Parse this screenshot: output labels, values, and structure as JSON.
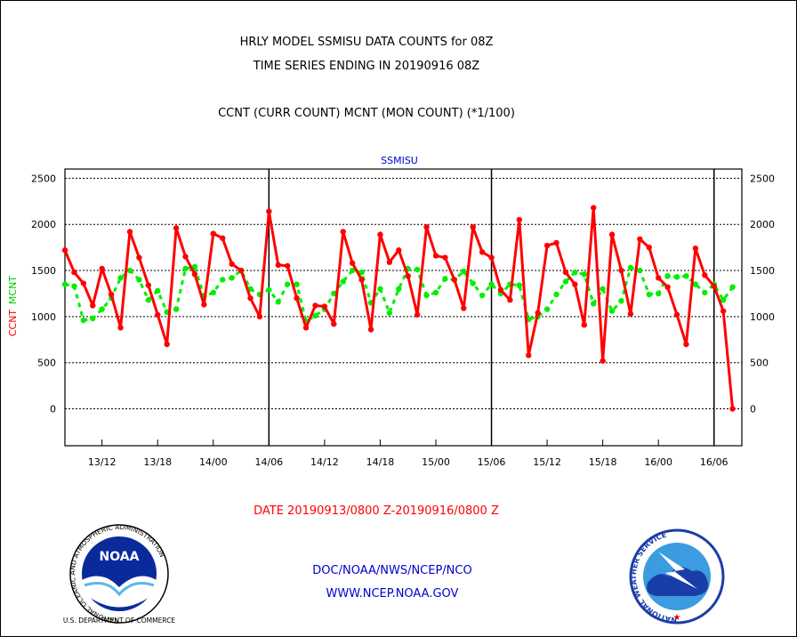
{
  "header": {
    "title_line1": "HRLY MODEL SSMISU DATA COUNTS for 08Z",
    "title_line2": "TIME SERIES ENDING IN 20190916 08Z",
    "legend_line": "CCNT (CURR COUNT) MCNT (MON COUNT) (*1/100)"
  },
  "footer": {
    "date_range": "DATE 20190913/0800 Z-20190916/0800 Z",
    "org_line": "DOC/NOAA/NWS/NCEP/NCO",
    "url_line": "WWW.NCEP.NOAA.GOV",
    "noaa_logo_text": "NOAA",
    "noaa_ring_text": "NATIONAL OCEANIC AND ATMOSPHERIC ADMINISTRATION",
    "noaa_ring_text_bottom": "U.S. DEPARTMENT OF COMMERCE",
    "nws_ring_text": "NATIONAL WEATHER SERVICE"
  },
  "colors": {
    "ccnt": "#ff0000",
    "mcnt": "#00ee00",
    "title_text": "#000000",
    "subtitle_blue": "#0000cc",
    "date_red": "#ff0000",
    "frame": "#000000"
  },
  "chart_data": {
    "type": "line",
    "title": "SSMISU",
    "ylabel_left_ccnt": "CCNT",
    "ylabel_left_mcnt": "MCNT",
    "ylim": [
      -400,
      2600
    ],
    "yticks": [
      0,
      500,
      1000,
      1500,
      2000,
      2500
    ],
    "ytick_labels": [
      "0",
      "500",
      "1000",
      "1500",
      "2000",
      "2500"
    ],
    "xlim": [
      0,
      73
    ],
    "xticks": [
      4,
      10,
      16,
      22,
      28,
      34,
      40,
      46,
      52,
      58,
      64,
      70
    ],
    "xtick_labels": [
      "13/12",
      "13/18",
      "14/00",
      "14/06",
      "14/12",
      "14/18",
      "15/00",
      "15/06",
      "15/12",
      "15/18",
      "16/00",
      "16/06"
    ],
    "day_boundaries": [
      22,
      46,
      70
    ],
    "grid": true,
    "series": [
      {
        "name": "CCNT",
        "values": [
          1720,
          1480,
          1360,
          1120,
          1520,
          1240,
          880,
          1920,
          1640,
          1340,
          1020,
          700,
          1960,
          1650,
          1460,
          1130,
          1900,
          1850,
          1570,
          1500,
          1200,
          1000,
          2140,
          1560,
          1550,
          1200,
          880,
          1120,
          1110,
          920,
          1920,
          1580,
          1400,
          860,
          1890,
          1590,
          1720,
          1440,
          1020,
          1970,
          1660,
          1640,
          1400,
          1090,
          1970,
          1700,
          1640,
          1290,
          1180,
          2050,
          580,
          1040,
          1770,
          1800,
          1480,
          1350,
          910,
          2180,
          520,
          1890,
          1500,
          1030,
          1840,
          1750,
          1420,
          1320,
          1020,
          700,
          1740,
          1450,
          1330,
          1060,
          0
        ]
      },
      {
        "name": "MCNT",
        "values": [
          1350,
          1330,
          960,
          980,
          1080,
          1200,
          1420,
          1500,
          1400,
          1180,
          1280,
          1050,
          1080,
          1520,
          1540,
          1220,
          1260,
          1400,
          1420,
          1500,
          1300,
          1240,
          1290,
          1160,
          1350,
          1350,
          950,
          1010,
          1080,
          1250,
          1380,
          1500,
          1480,
          1150,
          1300,
          1040,
          1300,
          1520,
          1510,
          1230,
          1260,
          1410,
          1400,
          1490,
          1360,
          1230,
          1350,
          1250,
          1350,
          1340,
          970,
          1000,
          1080,
          1240,
          1380,
          1480,
          1460,
          1140,
          1300,
          1060,
          1170,
          1530,
          1500,
          1240,
          1250,
          1440,
          1430,
          1440,
          1350,
          1260,
          1350,
          1180,
          1320
        ]
      }
    ]
  }
}
